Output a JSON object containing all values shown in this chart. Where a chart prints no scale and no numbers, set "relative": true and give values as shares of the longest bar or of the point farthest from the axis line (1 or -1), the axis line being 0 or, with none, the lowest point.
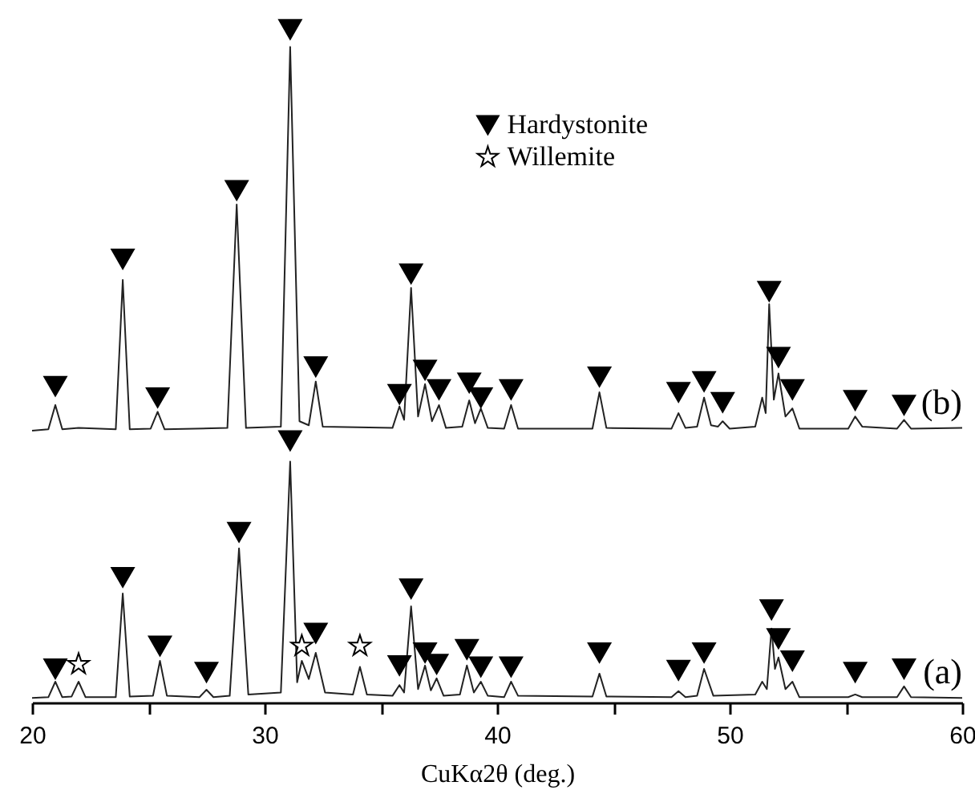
{
  "chart_data": {
    "type": "line",
    "relative": true,
    "xlabel": "CuKα2θ (deg.)",
    "xlim": [
      20,
      60
    ],
    "xticks": [
      20,
      {
        "value": 25,
        "label": null
      },
      30,
      {
        "value": 35,
        "label": null
      },
      40,
      {
        "value": 45,
        "label": null
      },
      50,
      {
        "value": 55,
        "label": null
      },
      60
    ],
    "legend": "top right",
    "grid": false,
    "series": [
      {
        "name": "(b)",
        "color": "#222222",
        "marker": "none",
        "x": [
          20.0,
          20.7,
          21.0,
          21.3,
          22.0,
          23.6,
          23.9,
          24.2,
          25.1,
          25.4,
          25.7,
          28.4,
          28.8,
          29.2,
          30.7,
          31.1,
          31.5,
          31.9,
          32.2,
          32.5,
          35.5,
          35.8,
          36.0,
          36.3,
          36.6,
          36.9,
          37.2,
          37.5,
          37.8,
          38.5,
          38.8,
          39.05,
          39.3,
          39.6,
          40.3,
          40.6,
          40.9,
          44.1,
          44.4,
          44.7,
          47.5,
          47.8,
          48.1,
          48.6,
          48.9,
          49.2,
          49.5,
          49.7,
          50.0,
          51.1,
          51.4,
          51.55,
          51.7,
          51.9,
          52.1,
          52.4,
          52.7,
          53.0,
          55.1,
          55.4,
          55.7,
          57.2,
          57.5,
          57.8,
          60.0
        ],
        "values": [
          0.404,
          0.406,
          0.442,
          0.406,
          0.408,
          0.406,
          0.628,
          0.406,
          0.407,
          0.432,
          0.406,
          0.408,
          0.74,
          0.408,
          0.41,
          0.974,
          0.418,
          0.412,
          0.477,
          0.41,
          0.408,
          0.44,
          0.42,
          0.616,
          0.425,
          0.473,
          0.418,
          0.442,
          0.408,
          0.41,
          0.449,
          0.415,
          0.437,
          0.408,
          0.407,
          0.442,
          0.407,
          0.407,
          0.461,
          0.408,
          0.407,
          0.43,
          0.408,
          0.41,
          0.453,
          0.412,
          0.41,
          0.418,
          0.407,
          0.41,
          0.453,
          0.43,
          0.592,
          0.45,
          0.489,
          0.425,
          0.437,
          0.407,
          0.407,
          0.425,
          0.41,
          0.407,
          0.42,
          0.407,
          0.408
        ]
      },
      {
        "name": "(a)",
        "color": "#222222",
        "marker": "none",
        "x": [
          20.0,
          20.7,
          21.0,
          21.3,
          21.7,
          22.0,
          22.3,
          23.6,
          23.9,
          24.2,
          25.2,
          25.5,
          25.8,
          27.2,
          27.5,
          27.8,
          28.5,
          28.9,
          29.3,
          30.7,
          31.1,
          31.4,
          31.6,
          31.9,
          32.2,
          32.6,
          33.8,
          34.1,
          34.4,
          35.5,
          35.8,
          36.0,
          36.3,
          36.6,
          36.9,
          37.15,
          37.4,
          37.7,
          38.4,
          38.7,
          39.0,
          39.3,
          39.6,
          40.3,
          40.6,
          40.9,
          44.1,
          44.4,
          44.7,
          47.5,
          47.8,
          48.1,
          48.6,
          48.9,
          49.3,
          51.1,
          51.4,
          51.6,
          51.8,
          51.95,
          52.1,
          52.4,
          52.7,
          53.0,
          55.1,
          55.4,
          55.7,
          57.2,
          57.5,
          57.8,
          60.0
        ],
        "values": [
          0.007,
          0.008,
          0.031,
          0.008,
          0.009,
          0.031,
          0.008,
          0.008,
          0.162,
          0.009,
          0.01,
          0.062,
          0.01,
          0.008,
          0.019,
          0.008,
          0.01,
          0.229,
          0.012,
          0.015,
          0.358,
          0.03,
          0.062,
          0.035,
          0.074,
          0.015,
          0.012,
          0.053,
          0.012,
          0.01,
          0.026,
          0.015,
          0.143,
          0.02,
          0.055,
          0.018,
          0.036,
          0.01,
          0.012,
          0.055,
          0.015,
          0.031,
          0.01,
          0.008,
          0.031,
          0.01,
          0.009,
          0.043,
          0.009,
          0.008,
          0.017,
          0.008,
          0.01,
          0.05,
          0.01,
          0.012,
          0.031,
          0.02,
          0.11,
          0.05,
          0.067,
          0.02,
          0.031,
          0.008,
          0.008,
          0.012,
          0.008,
          0.008,
          0.024,
          0.008,
          0.007
        ]
      },
      {
        "name": "Hardystonite",
        "type": "scatter",
        "color": "#000000",
        "marker": "triangle",
        "x": [
          21.0,
          23.9,
          25.4,
          28.8,
          31.1,
          32.2,
          35.8,
          36.3,
          36.9,
          37.5,
          38.8,
          39.3,
          40.6,
          44.4,
          47.8,
          48.9,
          49.7,
          51.7,
          52.1,
          52.7,
          55.4,
          57.5,
          21.0,
          23.9,
          25.5,
          27.5,
          28.9,
          31.1,
          32.2,
          35.8,
          36.3,
          36.9,
          37.4,
          38.7,
          39.3,
          40.6,
          44.4,
          47.8,
          48.9,
          51.8,
          52.1,
          52.7,
          55.4,
          57.5
        ],
        "values": [
          0.47,
          0.659,
          0.453,
          0.761,
          1.0,
          0.499,
          0.458,
          0.637,
          0.494,
          0.465,
          0.475,
          0.453,
          0.465,
          0.484,
          0.461,
          0.477,
          0.446,
          0.611,
          0.513,
          0.465,
          0.449,
          0.442,
          0.05,
          0.186,
          0.084,
          0.045,
          0.253,
          0.389,
          0.103,
          0.055,
          0.169,
          0.074,
          0.057,
          0.079,
          0.053,
          0.053,
          0.074,
          0.048,
          0.074,
          0.138,
          0.095,
          0.062,
          0.045,
          0.05
        ]
      },
      {
        "name": "Willemite",
        "type": "scatter",
        "color": "#ffffff",
        "marker": "star",
        "x": [
          22.0,
          31.6,
          34.1
        ],
        "values": [
          0.057,
          0.084,
          0.084
        ]
      }
    ]
  }
}
